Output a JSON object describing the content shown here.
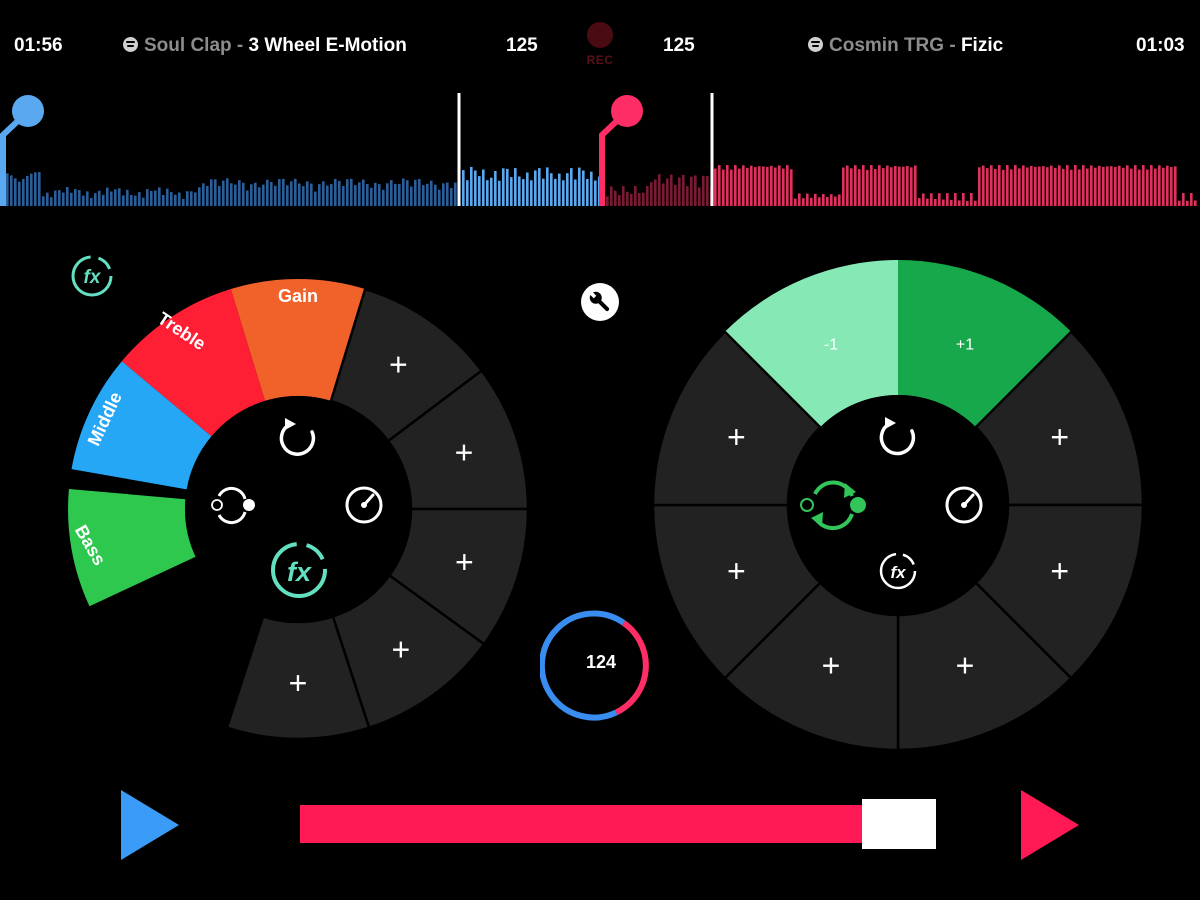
{
  "deck_left": {
    "time": "01:56",
    "artist": "Soul Clap",
    "separator": " - ",
    "title": "3 Wheel E-Motion",
    "bpm": "125",
    "accent": "#5aa9f0",
    "wheel_segments": [
      {
        "label": "Gain",
        "color": "#f0622a"
      },
      {
        "label": "Treble",
        "color": "#ff1f35"
      },
      {
        "label": "Middle",
        "color": "#25a7f5"
      },
      {
        "label": "Bass",
        "color": "#2ec84f"
      }
    ],
    "empty_slot_label": "+",
    "center_icons": [
      "loop-icon",
      "sync-icon",
      "gauge-icon",
      "fx-icon"
    ]
  },
  "deck_right": {
    "time": "01:03",
    "artist": "Cosmin TRG",
    "separator": " - ",
    "title": "Fizic",
    "bpm": "125",
    "accent": "#ff2d66",
    "pitch_minus_label": "-1",
    "pitch_plus_label": "+1",
    "pitch_colors": [
      "#86e8b5",
      "#18a84c"
    ],
    "empty_slot_label": "+",
    "center_icons": [
      "loop-icon",
      "sync-icon",
      "gauge-icon",
      "fx-icon"
    ]
  },
  "record": {
    "label": "REC",
    "color": "#4a0b12"
  },
  "master_tempo": {
    "value": "124",
    "colors": [
      "#3a8df0",
      "#ff2d66"
    ]
  },
  "crossfader": {
    "position": 0.95,
    "track_color": "#ff1a55"
  },
  "top_icons": [
    "fx-icon",
    "wrench-icon"
  ],
  "transport": {
    "left_play_color": "#3a9cf7",
    "right_play_color": "#ff1a55"
  },
  "icons": {
    "spotify": "spotify-icon",
    "play": "play-icon"
  }
}
